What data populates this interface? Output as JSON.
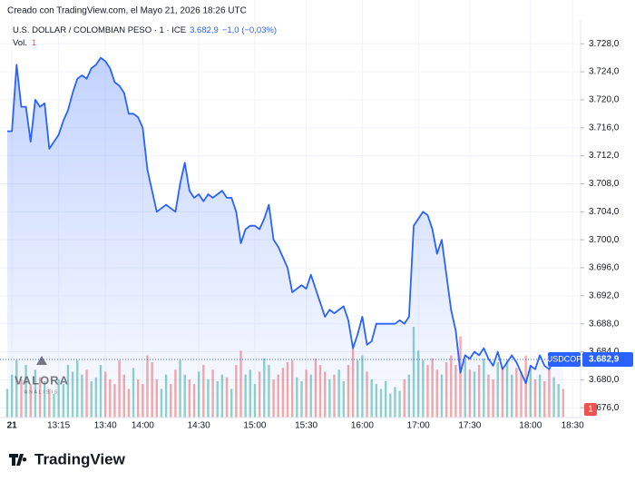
{
  "header": {
    "created": "Creado con TradingView.com, el Mayo 21, 2026 18:26 UTC",
    "symbol": "U.S. DOLLAR / COLOMBIAN PESO · 1 · ICE",
    "price": "3.682,9",
    "change": "−1,0 (−0,03%)",
    "vol_label": "Vol.",
    "vol_value": "1"
  },
  "watermark": {
    "name": "VALORA",
    "sub": "ANALISIS"
  },
  "footer": {
    "brand": "TradingView"
  },
  "chart_data": {
    "type": "line",
    "ticker": "USDCOP",
    "categories": [
      null,
      "21",
      null,
      null,
      null,
      null,
      null,
      null,
      null,
      null,
      null,
      "13:15",
      null,
      null,
      null,
      null,
      null,
      null,
      null,
      null,
      null,
      "13:40",
      null,
      null,
      null,
      null,
      null,
      null,
      null,
      "14:00",
      null,
      null,
      null,
      null,
      null,
      null,
      null,
      null,
      null,
      null,
      null,
      "14:30",
      null,
      null,
      null,
      null,
      null,
      null,
      null,
      null,
      null,
      null,
      null,
      "15:00",
      null,
      null,
      null,
      null,
      null,
      null,
      null,
      null,
      null,
      null,
      "15:30",
      null,
      null,
      null,
      null,
      null,
      null,
      null,
      null,
      null,
      null,
      null,
      "16:00",
      null,
      null,
      null,
      null,
      null,
      null,
      null,
      null,
      null,
      null,
      null,
      "17:00",
      null,
      null,
      null,
      null,
      null,
      null,
      null,
      null,
      null,
      null,
      "17:30",
      null,
      null,
      null,
      null,
      null,
      null,
      null,
      null,
      null,
      null,
      null,
      null,
      "18:00",
      null,
      null,
      null,
      null,
      null,
      null,
      null,
      null,
      "18:30"
    ],
    "series": [
      {
        "color": "#2962ff",
        "values": [
          3715.5,
          3715.5,
          3725,
          3719,
          3719,
          3714,
          3720,
          3719,
          3719.5,
          3713,
          3714,
          3715,
          3717,
          3718.5,
          3721,
          3723,
          3723.5,
          3723,
          3724.5,
          3725,
          3726,
          3725.5,
          3724.5,
          3722.5,
          3722,
          3721,
          3718,
          3718,
          3717.5,
          3716,
          3710,
          3707,
          3704,
          3704.5,
          3705,
          3704.5,
          3704,
          3708,
          3711,
          3707,
          3706,
          3706.5,
          3705.5,
          3706.5,
          3706,
          3706.5,
          3707,
          3706,
          3706,
          3704,
          3699.5,
          3701.5,
          3702,
          3702,
          3701.5,
          3703,
          3705,
          3700,
          3699,
          3697.5,
          3696,
          3692.5,
          3693,
          3693.5,
          3693,
          3695,
          3693,
          3691,
          3689,
          3690,
          3689.5,
          3690,
          3690.5,
          3688.5,
          3684.5,
          3686.5,
          3689,
          3685,
          3685.5,
          3688,
          3688,
          3688,
          3688,
          3688,
          3688.5,
          3688,
          3689,
          3702,
          3703,
          3704,
          3703.5,
          3701.5,
          3698,
          3700,
          3695,
          3690,
          3687,
          3681,
          3683.5,
          3683,
          3684,
          3683.5,
          3684.5,
          3683,
          3682,
          3684,
          3681.5,
          3682.5,
          3683.5,
          3682.5,
          3681,
          3679.5,
          3682,
          3681.5,
          3683.5,
          3682,
          3681.5,
          3683,
          3683,
          3682.9,
          null,
          null
        ]
      }
    ],
    "volume": {
      "up_color": "#26a69a",
      "down_color": "#ef5350",
      "values": [
        30,
        45,
        60,
        40,
        55,
        35,
        50,
        42,
        38,
        30,
        25,
        40,
        35,
        55,
        48,
        60,
        45,
        50,
        38,
        42,
        55,
        48,
        40,
        35,
        60,
        45,
        30,
        52,
        40,
        35,
        65,
        58,
        40,
        30,
        45,
        35,
        50,
        60,
        45,
        40,
        35,
        48,
        55,
        40,
        50,
        38,
        45,
        42,
        30,
        55,
        70,
        45,
        50,
        35,
        48,
        62,
        55,
        40,
        45,
        52,
        58,
        60,
        42,
        38,
        50,
        45,
        62,
        55,
        48,
        40,
        45,
        50,
        38,
        55,
        72,
        60,
        65,
        48,
        40,
        35,
        30,
        38,
        25,
        32,
        28,
        40,
        45,
        95,
        70,
        60,
        55,
        62,
        50,
        45,
        58,
        65,
        55,
        85,
        60,
        50,
        48,
        55,
        62,
        45,
        40,
        58,
        50,
        60,
        45,
        52,
        48,
        65,
        55,
        40,
        45,
        38,
        50,
        42,
        35,
        30,
        null,
        null
      ]
    },
    "ylim": [
      3674.6,
      3731.4
    ],
    "yticks": [
      {
        "value": 3676,
        "label": "3.676,0"
      },
      {
        "value": 3680,
        "label": "3.680,0"
      },
      {
        "value": 3684,
        "label": "3.684,0"
      },
      {
        "value": 3688,
        "label": "3.688,0"
      },
      {
        "value": 3692,
        "label": "3.692,0"
      },
      {
        "value": 3696,
        "label": "3.696,0"
      },
      {
        "value": 3700,
        "label": "3.700,0"
      },
      {
        "value": 3704,
        "label": "3.704,0"
      },
      {
        "value": 3708,
        "label": "3.708,0"
      },
      {
        "value": 3712,
        "label": "3.712,0"
      },
      {
        "value": 3716,
        "label": "3.716,0"
      },
      {
        "value": 3720,
        "label": "3.720,0"
      },
      {
        "value": 3724,
        "label": "3.724,0"
      },
      {
        "value": 3728,
        "label": "3.728,0"
      }
    ],
    "grid": true
  }
}
